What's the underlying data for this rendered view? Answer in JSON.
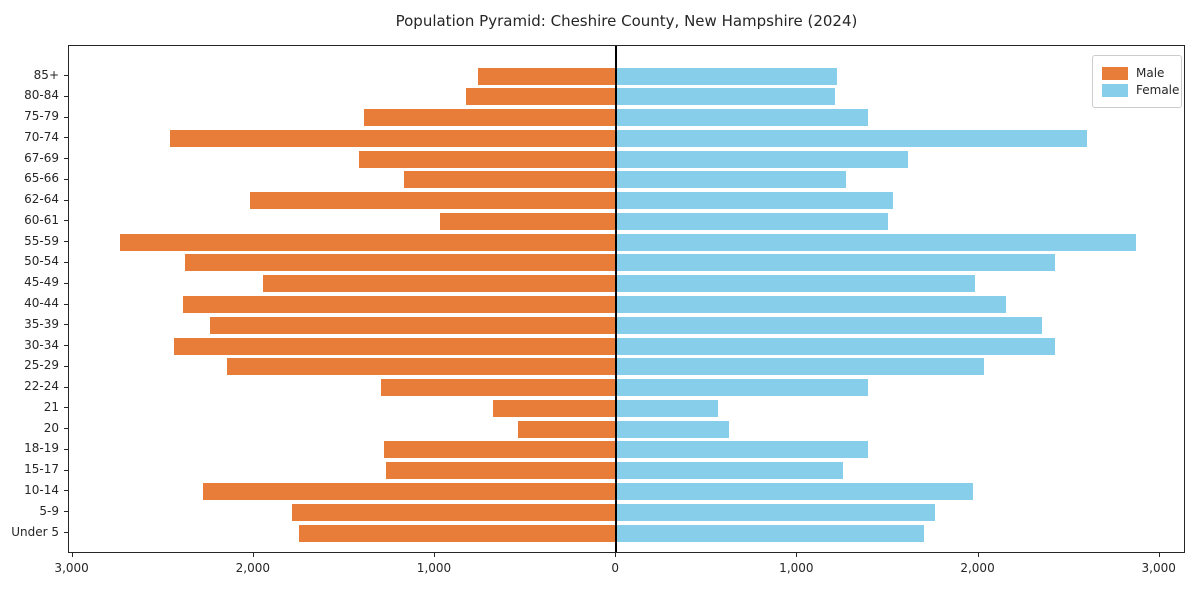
{
  "title": "Population Pyramid: Cheshire County, New Hampshire (2024)",
  "legend": {
    "male_label": "Male",
    "female_label": "Female"
  },
  "colors": {
    "male": "#e87d3a",
    "female": "#87ceeb",
    "axis": "#262626",
    "zero_line": "#000000"
  },
  "chart_data": {
    "type": "bar",
    "subtype": "population-pyramid",
    "title": "Population Pyramid: Cheshire County, New Hampshire (2024)",
    "xlabel": "",
    "ylabel": "",
    "grid": false,
    "legend_position": "upper right",
    "categories_top_to_bottom": [
      "85+",
      "80-84",
      "75-79",
      "70-74",
      "67-69",
      "65-66",
      "62-64",
      "60-61",
      "55-59",
      "50-54",
      "45-49",
      "40-44",
      "35-39",
      "30-34",
      "25-29",
      "22-24",
      "21",
      "20",
      "18-19",
      "15-17",
      "10-14",
      "5-9",
      "Under 5"
    ],
    "series": [
      {
        "name": "Male",
        "side": "left",
        "color": "#e87d3a",
        "values": [
          760,
          830,
          1390,
          2460,
          1420,
          1170,
          2020,
          970,
          2740,
          2380,
          1950,
          2390,
          2240,
          2440,
          2150,
          1300,
          680,
          540,
          1280,
          1270,
          2280,
          1790,
          1750
        ]
      },
      {
        "name": "Female",
        "side": "right",
        "color": "#87ceeb",
        "values": [
          1220,
          1210,
          1390,
          2600,
          1610,
          1270,
          1530,
          1500,
          2870,
          2420,
          1980,
          2150,
          2350,
          2420,
          2030,
          1390,
          560,
          620,
          1390,
          1250,
          1970,
          1760,
          1700
        ]
      }
    ],
    "x_tick_values": [
      -3000,
      -2000,
      -1000,
      0,
      1000,
      2000,
      3000
    ],
    "x_tick_labels": [
      "3,000",
      "2,000",
      "1,000",
      "0",
      "1,000",
      "2,000",
      "3,000"
    ],
    "xlim": [
      -3020,
      3145
    ]
  }
}
